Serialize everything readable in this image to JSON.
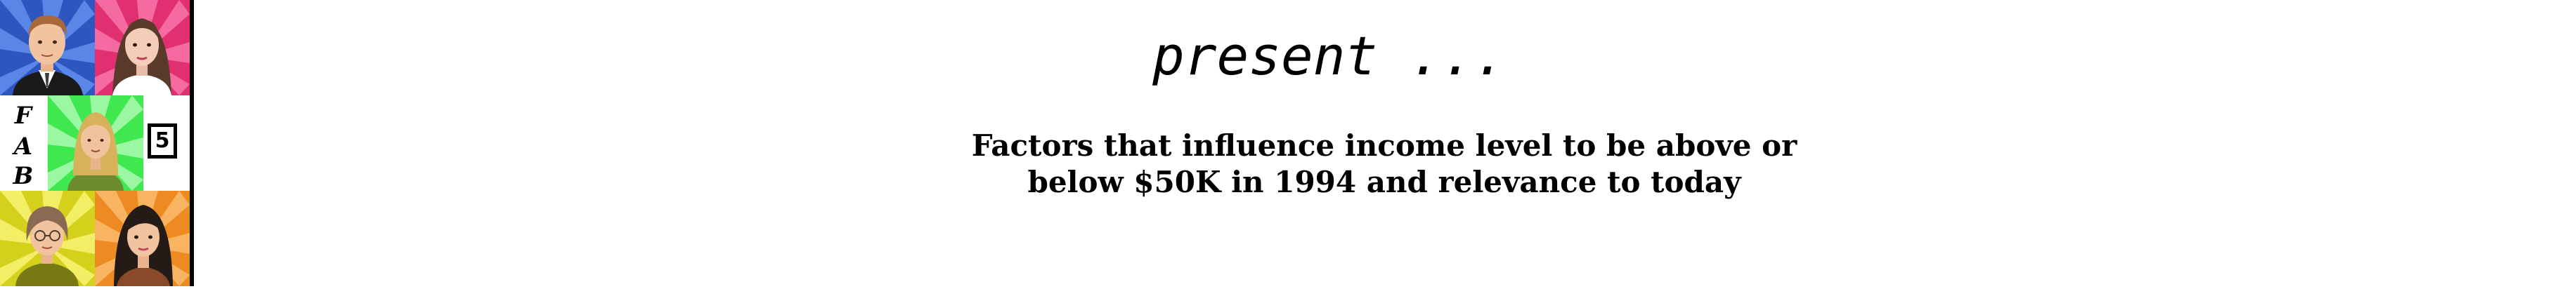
{
  "logo": {
    "letters": [
      "F",
      "A",
      "B"
    ],
    "number": "5",
    "colors": {
      "tile_top_left": "#3a62c8",
      "tile_top_right": "#e8357a",
      "tile_middle": "#3ee84e",
      "tile_bottom_left": "#d8d420",
      "tile_bottom_right": "#f0902a"
    },
    "avatars": [
      "man-avatar-icon",
      "woman-avatar-icon",
      "blonde-woman-avatar-icon",
      "glasses-woman-avatar-icon",
      "dark-haired-woman-avatar-icon"
    ]
  },
  "slide": {
    "present_text": "present ...",
    "subtitle_line1": "Factors that influence income level to be above or",
    "subtitle_line2": "below $50K in 1994 and relevance to today"
  }
}
